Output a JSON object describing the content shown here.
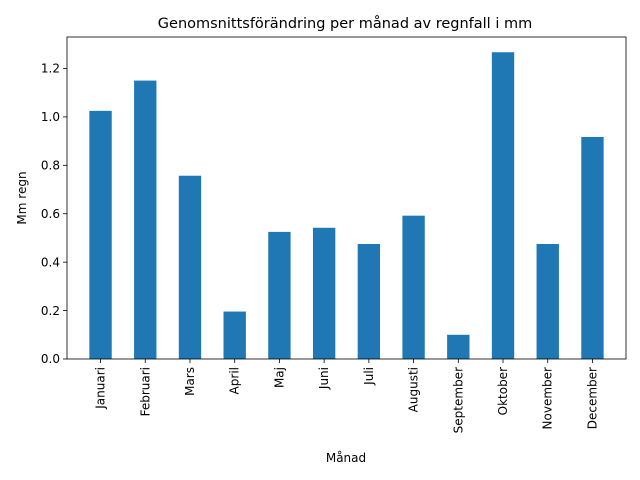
{
  "chart_data": {
    "type": "bar",
    "title": "Genomsnittsförändring per månad av regnfall i mm",
    "xlabel": "Månad",
    "ylabel": "Mm regn",
    "categories": [
      "Januari",
      "Februari",
      "Mars",
      "April",
      "Maj",
      "Juni",
      "Juli",
      "Augusti",
      "September",
      "Oktober",
      "November",
      "December"
    ],
    "values": [
      1.025,
      1.15,
      0.757,
      0.196,
      0.525,
      0.542,
      0.475,
      0.592,
      0.1,
      1.267,
      0.475,
      0.917
    ],
    "ylim": [
      0,
      1.33
    ],
    "yticks": [
      0.0,
      0.2,
      0.4,
      0.6,
      0.8,
      1.0,
      1.2
    ],
    "ytick_labels": [
      "0.0",
      "0.2",
      "0.4",
      "0.6",
      "0.8",
      "1.0",
      "1.2"
    ],
    "bar_color": "#1f77b4",
    "grid": false,
    "legend": "none"
  }
}
